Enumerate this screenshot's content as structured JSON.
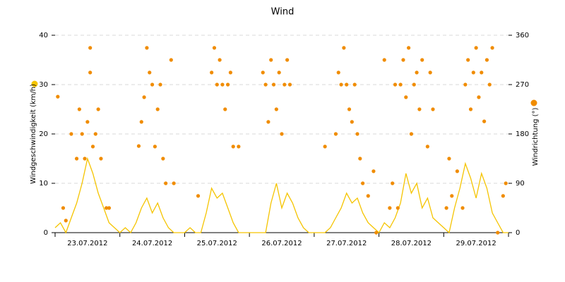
{
  "chart_data": {
    "type": "line_scatter",
    "title": "Wind",
    "xlim": [
      0,
      168
    ],
    "xticks": [
      {
        "value": 12,
        "label": "23.07.2012"
      },
      {
        "value": 36,
        "label": "24.07.2012"
      },
      {
        "value": 60,
        "label": "25.07.2012"
      },
      {
        "value": 84,
        "label": "26.07.2012"
      },
      {
        "value": 108,
        "label": "27.07.2012"
      },
      {
        "value": 132,
        "label": "28.07.2012"
      },
      {
        "value": 156,
        "label": "29.07.2012"
      }
    ],
    "xminorticks": [
      0,
      24,
      48,
      72,
      96,
      120,
      144,
      168
    ],
    "ylim": [
      0,
      40
    ],
    "yticks": [
      0,
      10,
      20,
      30,
      40
    ],
    "y2lim": [
      0,
      360
    ],
    "y2ticks": [
      0,
      90,
      180,
      270,
      360
    ],
    "grid": true,
    "series": [
      {
        "name": "Windgeschwindigkeit (km/h)",
        "type": "line",
        "color": "#f5c400",
        "x": [
          0,
          2,
          4,
          6,
          8,
          10,
          12,
          14,
          16,
          18,
          20,
          22,
          24,
          26,
          28,
          30,
          32,
          34,
          36,
          38,
          40,
          42,
          44,
          46,
          48,
          50,
          52,
          54,
          56,
          58,
          60,
          62,
          64,
          66,
          68,
          70,
          72,
          74,
          76,
          78,
          80,
          82,
          84,
          86,
          88,
          90,
          92,
          94,
          96,
          98,
          100,
          102,
          104,
          106,
          108,
          110,
          112,
          114,
          116,
          118,
          120,
          122,
          124,
          126,
          128,
          130,
          132,
          134,
          136,
          138,
          140,
          142,
          144,
          146,
          148,
          150,
          152,
          154,
          156,
          158,
          160,
          162,
          164,
          166,
          168
        ],
        "values": [
          1,
          2,
          0,
          3,
          6,
          10,
          15,
          12,
          8,
          5,
          2,
          1,
          0,
          1,
          0,
          2,
          5,
          7,
          4,
          6,
          3,
          1,
          0,
          0,
          0,
          1,
          0,
          0,
          4,
          9,
          7,
          8,
          5,
          2,
          0,
          0,
          0,
          0,
          0,
          0,
          6,
          10,
          5,
          8,
          6,
          3,
          1,
          0,
          0,
          0,
          0,
          1,
          3,
          5,
          8,
          6,
          7,
          4,
          2,
          1,
          0,
          2,
          1,
          3,
          6,
          12,
          8,
          10,
          5,
          7,
          3,
          2,
          1,
          0,
          5,
          9,
          14,
          11,
          7,
          12,
          9,
          4,
          2,
          0,
          0
        ]
      },
      {
        "name": "Windrichtung (°)",
        "type": "scatter",
        "axis": "y2",
        "color": "#f08c00",
        "x": [
          1,
          3,
          4,
          6,
          8,
          9,
          10,
          11,
          12,
          13,
          13,
          14,
          15,
          16,
          17,
          19,
          20,
          31,
          32,
          33,
          34,
          35,
          36,
          37,
          38,
          39,
          40,
          41,
          43,
          44,
          53,
          58,
          59,
          60,
          61,
          62,
          63,
          64,
          65,
          66,
          68,
          77,
          78,
          79,
          80,
          81,
          82,
          83,
          84,
          85,
          86,
          87,
          100,
          104,
          105,
          106,
          107,
          108,
          109,
          110,
          111,
          112,
          113,
          114,
          116,
          118,
          119,
          122,
          124,
          125,
          126,
          127,
          128,
          129,
          130,
          131,
          132,
          133,
          134,
          135,
          136,
          138,
          139,
          140,
          145,
          146,
          147,
          149,
          151,
          152,
          153,
          154,
          155,
          156,
          157,
          158,
          159,
          160,
          161,
          162,
          164,
          166,
          167
        ],
        "values": [
          248,
          45,
          22,
          180,
          135,
          225,
          180,
          135,
          202,
          337,
          292,
          157,
          180,
          225,
          135,
          45,
          45,
          158,
          202,
          247,
          337,
          292,
          270,
          157,
          225,
          270,
          135,
          90,
          315,
          90,
          67,
          292,
          337,
          270,
          315,
          270,
          225,
          270,
          292,
          157,
          157,
          292,
          270,
          202,
          315,
          270,
          225,
          292,
          180,
          270,
          315,
          270,
          157,
          180,
          292,
          270,
          337,
          270,
          225,
          202,
          270,
          180,
          135,
          90,
          67,
          112,
          0,
          315,
          45,
          90,
          270,
          45,
          270,
          315,
          247,
          337,
          180,
          270,
          292,
          225,
          315,
          157,
          292,
          225,
          45,
          135,
          67,
          112,
          45,
          270,
          315,
          225,
          292,
          337,
          247,
          292,
          203,
          315,
          270,
          337,
          0,
          67,
          90
        ]
      }
    ]
  }
}
